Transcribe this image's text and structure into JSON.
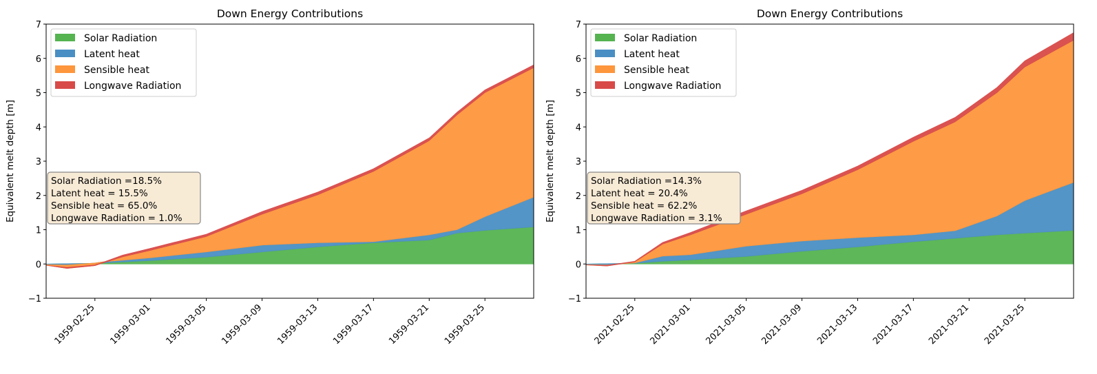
{
  "chart_data": [
    {
      "type": "area",
      "stacked": true,
      "title": "Down Energy Contributions",
      "xlabel": "",
      "ylabel": "Equivalent melt depth [m]",
      "ylim": [
        -1,
        7
      ],
      "yticks": [
        "−1",
        "0",
        "1",
        "2",
        "3",
        "4",
        "5",
        "6",
        "7"
      ],
      "xlim": [
        "1959-02-21T12:00",
        "1959-03-28T12:00"
      ],
      "xticks": [
        "1959-02-25",
        "1959-03-01",
        "1959-03-05",
        "1959-03-09",
        "1959-03-13",
        "1959-03-17",
        "1959-03-21",
        "1959-03-25"
      ],
      "legend": {
        "position": "top-left",
        "entries": [
          "Solar Radiation",
          "Latent heat",
          "Sensible heat",
          "Longwave Radiation"
        ]
      },
      "annotation": [
        "Solar Radiation =18.5%",
        "Latent heat = 15.5%",
        "Sensible heat = 65.0%",
        "Longwave Radiation = 1.0%"
      ],
      "x": [
        "1959-02-21T12:00",
        "1959-02-23",
        "1959-02-25",
        "1959-02-25T12:00",
        "1959-02-27",
        "1959-03-01",
        "1959-03-05",
        "1959-03-09",
        "1959-03-13",
        "1959-03-17",
        "1959-03-21",
        "1959-03-23",
        "1959-03-25",
        "1959-03-28T12:00"
      ],
      "series": [
        {
          "name": "Solar Radiation",
          "color": "#55b350",
          "values": [
            0,
            0.01,
            0.02,
            0.03,
            0.06,
            0.1,
            0.2,
            0.35,
            0.5,
            0.62,
            0.7,
            0.9,
            0.98,
            1.08
          ]
        },
        {
          "name": "Latent heat",
          "color": "#4a8fc3",
          "values": [
            -0.02,
            -0.04,
            0.01,
            0.03,
            0.05,
            0.08,
            0.15,
            0.2,
            0.12,
            0.03,
            0.15,
            0.1,
            0.4,
            0.87
          ]
        },
        {
          "name": "Sensible heat",
          "color": "#fd963c",
          "values": [
            -0.02,
            -0.1,
            -0.08,
            -0.04,
            0.1,
            0.22,
            0.45,
            0.9,
            1.4,
            2.05,
            2.75,
            3.35,
            3.62,
            3.78
          ]
        },
        {
          "name": "Longwave Radiation",
          "color": "#d84a48",
          "values": [
            0,
            0.03,
            0.02,
            0.02,
            0.05,
            0.06,
            0.07,
            0.08,
            0.08,
            0.08,
            0.08,
            0.08,
            0.08,
            0.08
          ]
        }
      ]
    },
    {
      "type": "area",
      "stacked": true,
      "title": "Down Energy Contributions",
      "xlabel": "",
      "ylabel": "Equivalent melt depth [m]",
      "ylim": [
        -1,
        7
      ],
      "yticks": [
        "−1",
        "0",
        "1",
        "2",
        "3",
        "4",
        "5",
        "6",
        "7"
      ],
      "xlim": [
        "2021-02-21T12:00",
        "2021-03-28T12:00"
      ],
      "xticks": [
        "2021-02-25",
        "2021-03-01",
        "2021-03-05",
        "2021-03-09",
        "2021-03-13",
        "2021-03-17",
        "2021-03-21",
        "2021-03-25"
      ],
      "legend": {
        "position": "top-left",
        "entries": [
          "Solar Radiation",
          "Latent heat",
          "Sensible heat",
          "Longwave Radiation"
        ]
      },
      "annotation": [
        "Solar Radiation =14.3%",
        "Latent heat = 20.4%",
        "Sensible heat = 62.2%",
        "Longwave Radiation = 3.1%"
      ],
      "x": [
        "2021-02-21T12:00",
        "2021-02-23",
        "2021-02-25",
        "2021-02-27",
        "2021-03-01",
        "2021-03-05",
        "2021-03-09",
        "2021-03-13",
        "2021-03-17",
        "2021-03-20",
        "2021-03-23",
        "2021-03-25",
        "2021-03-28T12:00"
      ],
      "series": [
        {
          "name": "Solar Radiation",
          "color": "#55b350",
          "values": [
            0,
            0.01,
            0.02,
            0.08,
            0.12,
            0.22,
            0.37,
            0.5,
            0.65,
            0.75,
            0.85,
            0.9,
            0.98
          ]
        },
        {
          "name": "Latent heat",
          "color": "#4a8fc3",
          "values": [
            -0.02,
            -0.04,
            0.01,
            0.15,
            0.15,
            0.3,
            0.3,
            0.27,
            0.2,
            0.22,
            0.55,
            0.95,
            1.4
          ]
        },
        {
          "name": "Sensible heat",
          "color": "#fd963c",
          "values": [
            -0.01,
            -0.03,
            0.03,
            0.35,
            0.58,
            0.93,
            1.38,
            1.98,
            2.73,
            3.18,
            3.6,
            3.9,
            4.15
          ]
        },
        {
          "name": "Longwave Radiation",
          "color": "#d84a48",
          "values": [
            0,
            0.02,
            0.02,
            0.05,
            0.07,
            0.1,
            0.1,
            0.11,
            0.12,
            0.13,
            0.15,
            0.18,
            0.22
          ]
        }
      ]
    }
  ]
}
